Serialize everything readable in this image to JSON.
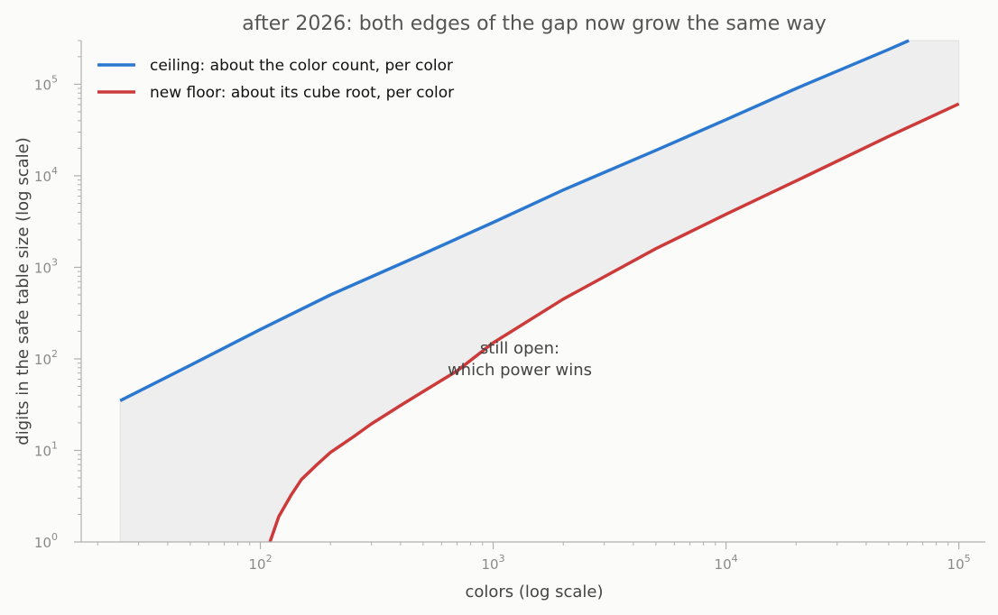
{
  "chart_data": {
    "type": "line",
    "title": "after 2026: both edges of the gap now grow the same way",
    "xlabel": "colors (log scale)",
    "ylabel": "digits in the safe table size (log scale)",
    "x_scale": "log",
    "y_scale": "log",
    "xlim": [
      17,
      130000
    ],
    "ylim": [
      1,
      300000
    ],
    "x_ticks": [
      {
        "value": 100,
        "base": "10",
        "exp": "2"
      },
      {
        "value": 1000,
        "base": "10",
        "exp": "3"
      },
      {
        "value": 10000,
        "base": "10",
        "exp": "4"
      },
      {
        "value": 100000,
        "base": "10",
        "exp": "5"
      }
    ],
    "y_ticks": [
      {
        "value": 1,
        "base": "10",
        "exp": "0"
      },
      {
        "value": 10,
        "base": "10",
        "exp": "1"
      },
      {
        "value": 100,
        "base": "10",
        "exp": "2"
      },
      {
        "value": 1000,
        "base": "10",
        "exp": "3"
      },
      {
        "value": 10000,
        "base": "10",
        "exp": "4"
      },
      {
        "value": 100000,
        "base": "10",
        "exp": "5"
      }
    ],
    "series": [
      {
        "name": "ceiling: about the color count, per color",
        "color": "#2b78d0",
        "x": [
          25,
          50,
          100,
          200,
          500,
          1000,
          2000,
          5000,
          10000,
          20000,
          50000,
          61000
        ],
        "y": [
          35,
          85,
          210,
          500,
          1400,
          3100,
          7000,
          19000,
          41000,
          90000,
          240000,
          300000
        ]
      },
      {
        "name": "new floor: about its cube root, per color",
        "color": "#cc3a3a",
        "x": [
          110,
          120,
          135,
          150,
          175,
          200,
          250,
          300,
          400,
          500,
          700,
          1000,
          2000,
          5000,
          10000,
          20000,
          50000,
          100000
        ],
        "y": [
          1,
          1.9,
          3.2,
          4.8,
          7,
          9.5,
          14,
          19.5,
          31,
          44,
          74,
          150,
          450,
          1600,
          3800,
          8800,
          27000,
          61000
        ]
      }
    ],
    "band": {
      "between": "series",
      "color": "#efeeee",
      "x_range": [
        25,
        100000
      ]
    },
    "annotation": {
      "lines": [
        "still open:",
        "which power wins"
      ],
      "x": 1300,
      "y": 100
    },
    "legend": "top-left",
    "grid": false
  }
}
